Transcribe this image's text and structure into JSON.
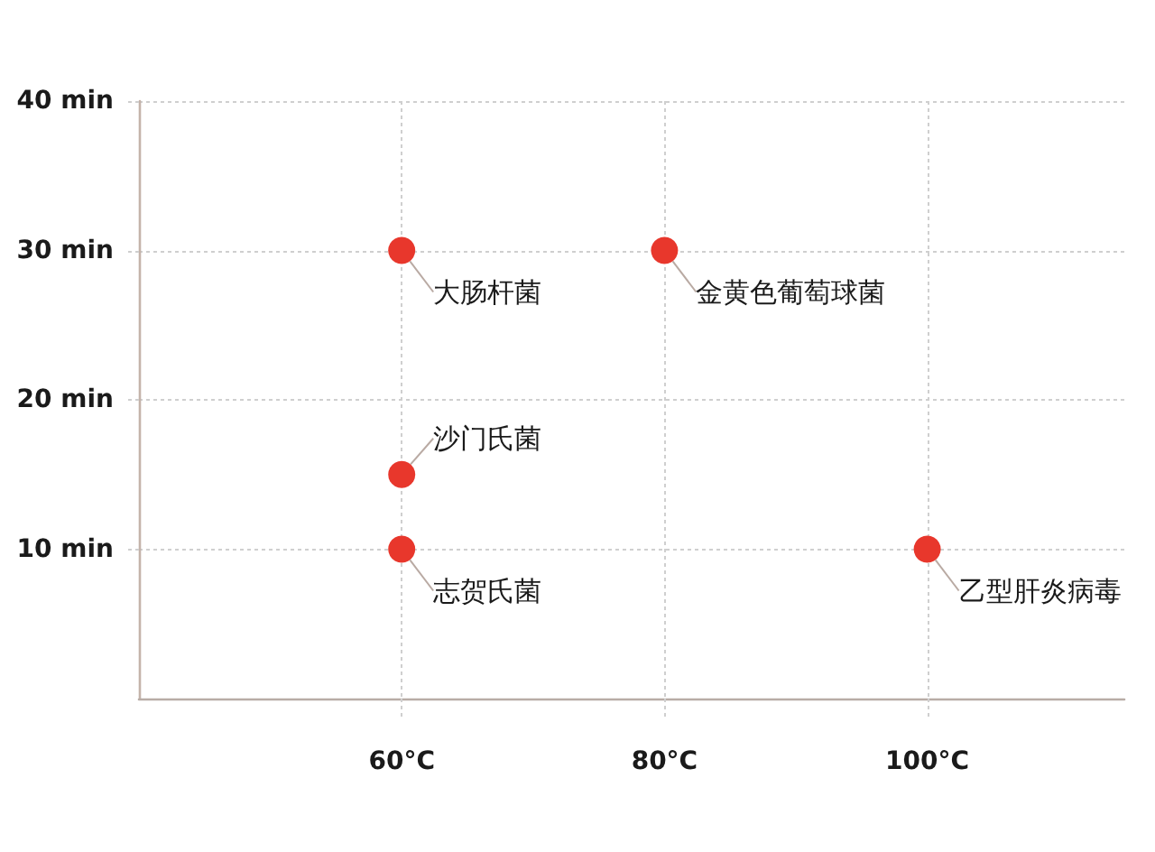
{
  "chart_data": {
    "type": "scatter",
    "x": [
      60,
      80,
      60,
      60,
      100
    ],
    "values": [
      30,
      30,
      15,
      10,
      10
    ],
    "color": "#e8372c",
    "xlim": [
      40,
      115
    ],
    "ylim": [
      0,
      40
    ],
    "xticks": [
      {
        "value": 60,
        "label": "60°C"
      },
      {
        "value": 80,
        "label": "80°C"
      },
      {
        "value": 100,
        "label": "100°C"
      }
    ],
    "yticks": [
      {
        "value": 10,
        "label": "10 min"
      },
      {
        "value": 20,
        "label": "20 min"
      },
      {
        "value": 30,
        "label": "30 min"
      },
      {
        "value": 40,
        "label": "40 min"
      }
    ],
    "grid": true,
    "marker": "circle",
    "annotations": [
      {
        "text": "大肠杆菌",
        "x": 60,
        "y": 30
      },
      {
        "text": "金黄色葡萄球菌",
        "x": 80,
        "y": 30
      },
      {
        "text": "沙门氏菌",
        "x": 60,
        "y": 15
      },
      {
        "text": "志贺氏菌",
        "x": 60,
        "y": 10
      },
      {
        "text": "乙型肝炎病毒",
        "x": 100,
        "y": 10
      }
    ]
  }
}
